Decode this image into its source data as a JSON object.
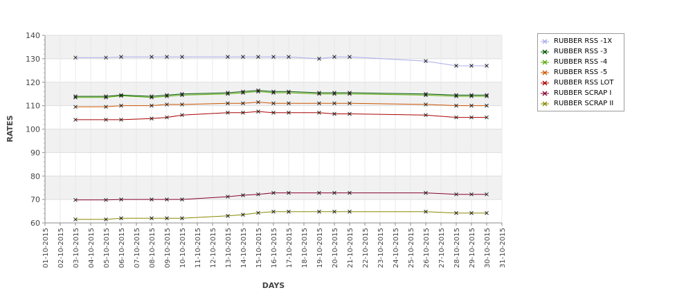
{
  "chart_data": {
    "type": "line",
    "xlabel": "DAYS",
    "ylabel": "RATES",
    "ylim": [
      60,
      140
    ],
    "yticks": [
      60,
      70,
      80,
      90,
      100,
      110,
      120,
      130,
      140
    ],
    "grid": true,
    "legend_position": "right",
    "x_ticks": [
      "01-10-2015",
      "02-10-2015",
      "03-10-2015",
      "04-10-2015",
      "05-10-2015",
      "06-10-2015",
      "07-10-2015",
      "08-10-2015",
      "09-10-2015",
      "10-10-2015",
      "11-10-2015",
      "12-10-2015",
      "13-10-2015",
      "14-10-2015",
      "15-10-2015",
      "16-10-2015",
      "17-10-2015",
      "18-10-2015",
      "19-10-2015",
      "20-10-2015",
      "21-10-2015",
      "22-10-2015",
      "23-10-2015",
      "24-10-2015",
      "25-10-2015",
      "26-10-2015",
      "27-10-2015",
      "28-10-2015",
      "29-10-2015",
      "30-10-2015",
      "31-10-2015"
    ],
    "x": [
      "03-10-2015",
      "05-10-2015",
      "06-10-2015",
      "08-10-2015",
      "09-10-2015",
      "10-10-2015",
      "13-10-2015",
      "14-10-2015",
      "15-10-2015",
      "16-10-2015",
      "17-10-2015",
      "19-10-2015",
      "20-10-2015",
      "21-10-2015",
      "26-10-2015",
      "28-10-2015",
      "29-10-2015",
      "30-10-2015"
    ],
    "series": [
      {
        "name": "RUBBER RSS -1X",
        "color": "#aaaaee",
        "values": [
          130.5,
          130.5,
          130.8,
          130.8,
          130.8,
          130.8,
          130.8,
          130.8,
          130.8,
          130.8,
          130.8,
          130.0,
          130.8,
          130.8,
          129.0,
          127.0,
          127.0,
          127.0
        ]
      },
      {
        "name": "RUBBER RSS -3",
        "color": "#005500",
        "values": [
          114.0,
          114.0,
          114.5,
          114.0,
          114.5,
          115.0,
          115.5,
          116.0,
          116.5,
          116.0,
          116.0,
          115.5,
          115.5,
          115.5,
          115.0,
          114.5,
          114.5,
          114.5
        ]
      },
      {
        "name": "RUBBER RSS -4",
        "color": "#55aa00",
        "values": [
          113.5,
          113.5,
          114.2,
          113.5,
          114.0,
          114.5,
          115.0,
          115.5,
          116.0,
          115.5,
          115.5,
          115.0,
          115.0,
          115.0,
          114.5,
          114.0,
          114.0,
          114.0
        ]
      },
      {
        "name": "RUBBER RSS -5",
        "color": "#cc5500",
        "values": [
          109.5,
          109.5,
          110.0,
          110.0,
          110.5,
          110.5,
          111.0,
          111.0,
          111.5,
          111.0,
          111.0,
          111.0,
          111.0,
          111.0,
          110.5,
          110.0,
          110.0,
          110.0
        ]
      },
      {
        "name": "RUBBER RSS LOT",
        "color": "#aa0000",
        "values": [
          104.0,
          104.0,
          104.0,
          104.5,
          105.0,
          106.0,
          107.0,
          107.0,
          107.5,
          107.0,
          107.0,
          107.0,
          106.5,
          106.5,
          106.0,
          105.0,
          105.0,
          105.0
        ]
      },
      {
        "name": "RUBBER SCRAP I",
        "color": "#880033",
        "values": [
          69.8,
          69.8,
          70.0,
          70.0,
          70.0,
          70.0,
          71.2,
          71.8,
          72.2,
          72.8,
          72.8,
          72.8,
          72.8,
          72.8,
          72.8,
          72.2,
          72.2,
          72.2
        ]
      },
      {
        "name": "RUBBER SCRAP II",
        "color": "#888800",
        "values": [
          61.5,
          61.5,
          62.0,
          62.0,
          62.0,
          62.0,
          63.0,
          63.5,
          64.3,
          64.8,
          64.8,
          64.8,
          64.8,
          64.8,
          64.8,
          64.2,
          64.2,
          64.2
        ]
      }
    ]
  }
}
